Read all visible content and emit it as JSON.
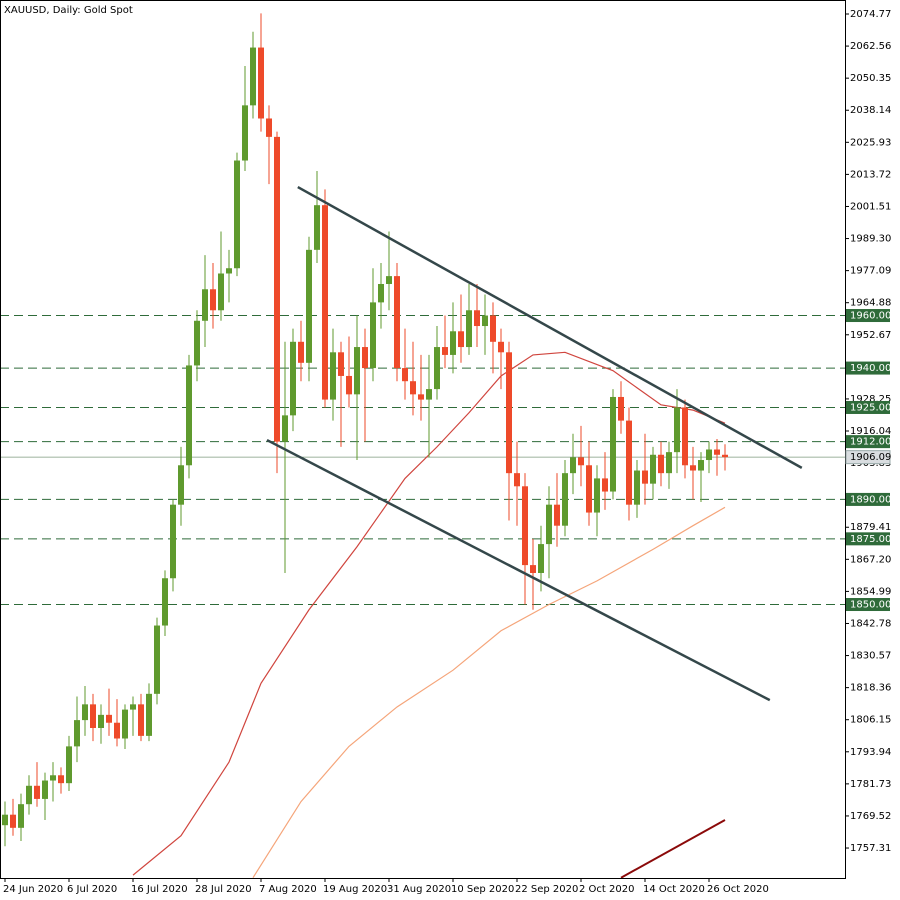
{
  "chart_data": {
    "type": "candlestick",
    "title": "XAUUSD, Daily:  Gold Spot",
    "categories": [
      "24 Jun 2020",
      null,
      null,
      null,
      null,
      null,
      null,
      null,
      "6 Jul 2020",
      null,
      null,
      null,
      null,
      null,
      null,
      null,
      "16 Jul 2020",
      null,
      null,
      null,
      null,
      null,
      null,
      null,
      "28 Jul 2020",
      null,
      null,
      null,
      null,
      null,
      null,
      null,
      "7 Aug 2020",
      null,
      null,
      null,
      null,
      null,
      null,
      null,
      "19 Aug 2020",
      null,
      null,
      null,
      null,
      null,
      null,
      null,
      "31 Aug 2020",
      null,
      null,
      null,
      null,
      null,
      null,
      null,
      "10 Sep 2020",
      null,
      null,
      null,
      null,
      null,
      null,
      null,
      "22 Sep 2020",
      null,
      null,
      null,
      null,
      null,
      null,
      null,
      "2 Oct 2020",
      null,
      null,
      null,
      null,
      null,
      null,
      null,
      "14 Oct 2020",
      null,
      null,
      null,
      null,
      null,
      null,
      null,
      "26 Oct 2020",
      null,
      null
    ],
    "open": [
      1766,
      1770,
      1765,
      1774,
      1781,
      1776,
      1783,
      1785,
      1782,
      1796,
      1806,
      1812,
      1803,
      1808,
      1805,
      1799,
      1810,
      1812,
      1800,
      1816,
      1842,
      1860,
      1888,
      1903,
      1941,
      1958,
      1970,
      1962,
      1976,
      1978,
      2019,
      2040,
      2062,
      2035,
      2028,
      1912,
      1922,
      1950,
      1942,
      1985,
      2002,
      1928,
      1946,
      1937,
      1930,
      1948,
      1940,
      1965,
      1972,
      1975,
      1940,
      1935,
      1930,
      1928,
      1932,
      1948,
      1945,
      1954,
      1948,
      1962,
      1956,
      1960,
      1950,
      1946,
      1900,
      1895,
      1865,
      1862,
      1873,
      1888,
      1880,
      1900,
      1906,
      1903,
      1885,
      1898,
      1893,
      1929,
      1920,
      1888,
      1901,
      1896,
      1907,
      1900,
      1908,
      1925,
      1903,
      1901,
      1905,
      1909,
      1907
    ],
    "high": [
      1775,
      1776,
      1778,
      1785,
      1790,
      1786,
      1790,
      1788,
      1800,
      1815,
      1819,
      1816,
      1812,
      1818,
      1814,
      1812,
      1815,
      1816,
      1820,
      1845,
      1863,
      1890,
      1910,
      1945,
      1962,
      1983,
      1980,
      1992,
      1985,
      2022,
      2055,
      2068,
      2075,
      2040,
      2030,
      1950,
      1955,
      1958,
      1990,
      2015,
      2008,
      1955,
      1950,
      1952,
      1960,
      1955,
      1978,
      1980,
      1992,
      1980,
      1955,
      1950,
      1945,
      1945,
      1956,
      1960,
      1965,
      1968,
      1972,
      1972,
      1968,
      1965,
      1955,
      1950,
      1912,
      1900,
      1875,
      1880,
      1895,
      1900,
      1905,
      1915,
      1918,
      1912,
      1903,
      1908,
      1932,
      1935,
      1925,
      1905,
      1915,
      1910,
      1912,
      1912,
      1932,
      1928,
      1910,
      1908,
      1912,
      1913,
      1911
    ],
    "low": [
      1758,
      1762,
      1760,
      1770,
      1773,
      1768,
      1775,
      1778,
      1779,
      1790,
      1800,
      1798,
      1797,
      1800,
      1796,
      1795,
      1800,
      1798,
      1798,
      1812,
      1838,
      1855,
      1880,
      1898,
      1935,
      1948,
      1955,
      1958,
      1965,
      1975,
      2015,
      2035,
      2030,
      2010,
      1900,
      1862,
      1916,
      1935,
      1935,
      1980,
      1925,
      1920,
      1910,
      1925,
      1905,
      1912,
      1935,
      1955,
      1962,
      1935,
      1928,
      1922,
      1920,
      1906,
      1928,
      1940,
      1938,
      1942,
      1945,
      1948,
      1945,
      1938,
      1932,
      1882,
      1880,
      1850,
      1848,
      1855,
      1860,
      1872,
      1876,
      1892,
      1895,
      1880,
      1876,
      1886,
      1890,
      1915,
      1882,
      1883,
      1888,
      1890,
      1895,
      1894,
      1900,
      1898,
      1890,
      1889,
      1900,
      1899,
      1901
    ],
    "close": [
      1770,
      1765,
      1774,
      1781,
      1776,
      1783,
      1785,
      1782,
      1796,
      1806,
      1812,
      1803,
      1808,
      1805,
      1799,
      1810,
      1812,
      1800,
      1816,
      1842,
      1860,
      1888,
      1903,
      1941,
      1958,
      1970,
      1962,
      1976,
      1978,
      2019,
      2040,
      2062,
      2035,
      2028,
      1912,
      1922,
      1950,
      1942,
      1985,
      2002,
      1928,
      1946,
      1937,
      1930,
      1948,
      1940,
      1965,
      1972,
      1975,
      1940,
      1935,
      1930,
      1928,
      1932,
      1948,
      1945,
      1954,
      1948,
      1962,
      1956,
      1960,
      1950,
      1946,
      1900,
      1895,
      1865,
      1862,
      1873,
      1888,
      1880,
      1900,
      1906,
      1903,
      1885,
      1898,
      1893,
      1929,
      1920,
      1888,
      1901,
      1896,
      1907,
      1900,
      1908,
      1925,
      1903,
      1901,
      1905,
      1909,
      1907,
      1906.09
    ],
    "up_color": "#5f9a2e",
    "down_color": "#ee4a2a",
    "moving_averages": [
      {
        "color": "#d0453e",
        "x": [
          16,
          22,
          28,
          32,
          38,
          44,
          50,
          54,
          58,
          62,
          66,
          70,
          76,
          82,
          86,
          90
        ],
        "values": [
          1747,
          1762,
          1790,
          1820,
          1848,
          1872,
          1898,
          1910,
          1923,
          1937,
          1945,
          1946,
          1939,
          1926,
          1924,
          1919
        ]
      },
      {
        "color": "#f5a57a",
        "x": [
          31,
          37,
          43,
          49,
          56,
          62,
          68,
          74,
          81,
          86,
          90
        ],
        "values": [
          1746,
          1775,
          1796,
          1811,
          1825,
          1840,
          1850,
          1859,
          1871,
          1880,
          1887
        ]
      },
      {
        "color": "#8b0a0a",
        "x": [
          77,
          90
        ],
        "values": [
          1746,
          1768
        ]
      }
    ],
    "trendlines": [
      {
        "color": "#34474a",
        "x": [
          36.6,
          99.6
        ],
        "values": [
          2008.9,
          1902.0
        ]
      },
      {
        "color": "#34474a",
        "x": [
          32.75,
          95.6
        ],
        "values": [
          1912.6,
          1813.6
        ]
      }
    ],
    "levels": {
      "color": "#2f6b3a",
      "values": [
        1960,
        1940,
        1925,
        1912,
        1890,
        1875,
        1850
      ],
      "value_labels": [
        "1960.00",
        "1940.00",
        "1925.00",
        "1912.00",
        "1890.00",
        "1875.00",
        "1850.00"
      ]
    },
    "last_price": 1906.09,
    "xlim": [
      -0.625,
      105
    ],
    "ylim": [
      1745.9,
      2080.1
    ],
    "yticks": [
      2074.77,
      2062.56,
      2050.35,
      2038.14,
      2025.93,
      2013.72,
      2001.51,
      {
        "value": 1989.3,
        "label": "1989.30"
      },
      1977.09,
      1964.88,
      1952.67,
      1928.25,
      1916.04,
      1903.83,
      1879.41,
      {
        "value": 1867.2,
        "label": "1867.20"
      },
      1854.99,
      1842.78,
      1830.57,
      1818.36,
      1806.15,
      1793.94,
      1781.73,
      1769.52,
      1757.31
    ]
  }
}
